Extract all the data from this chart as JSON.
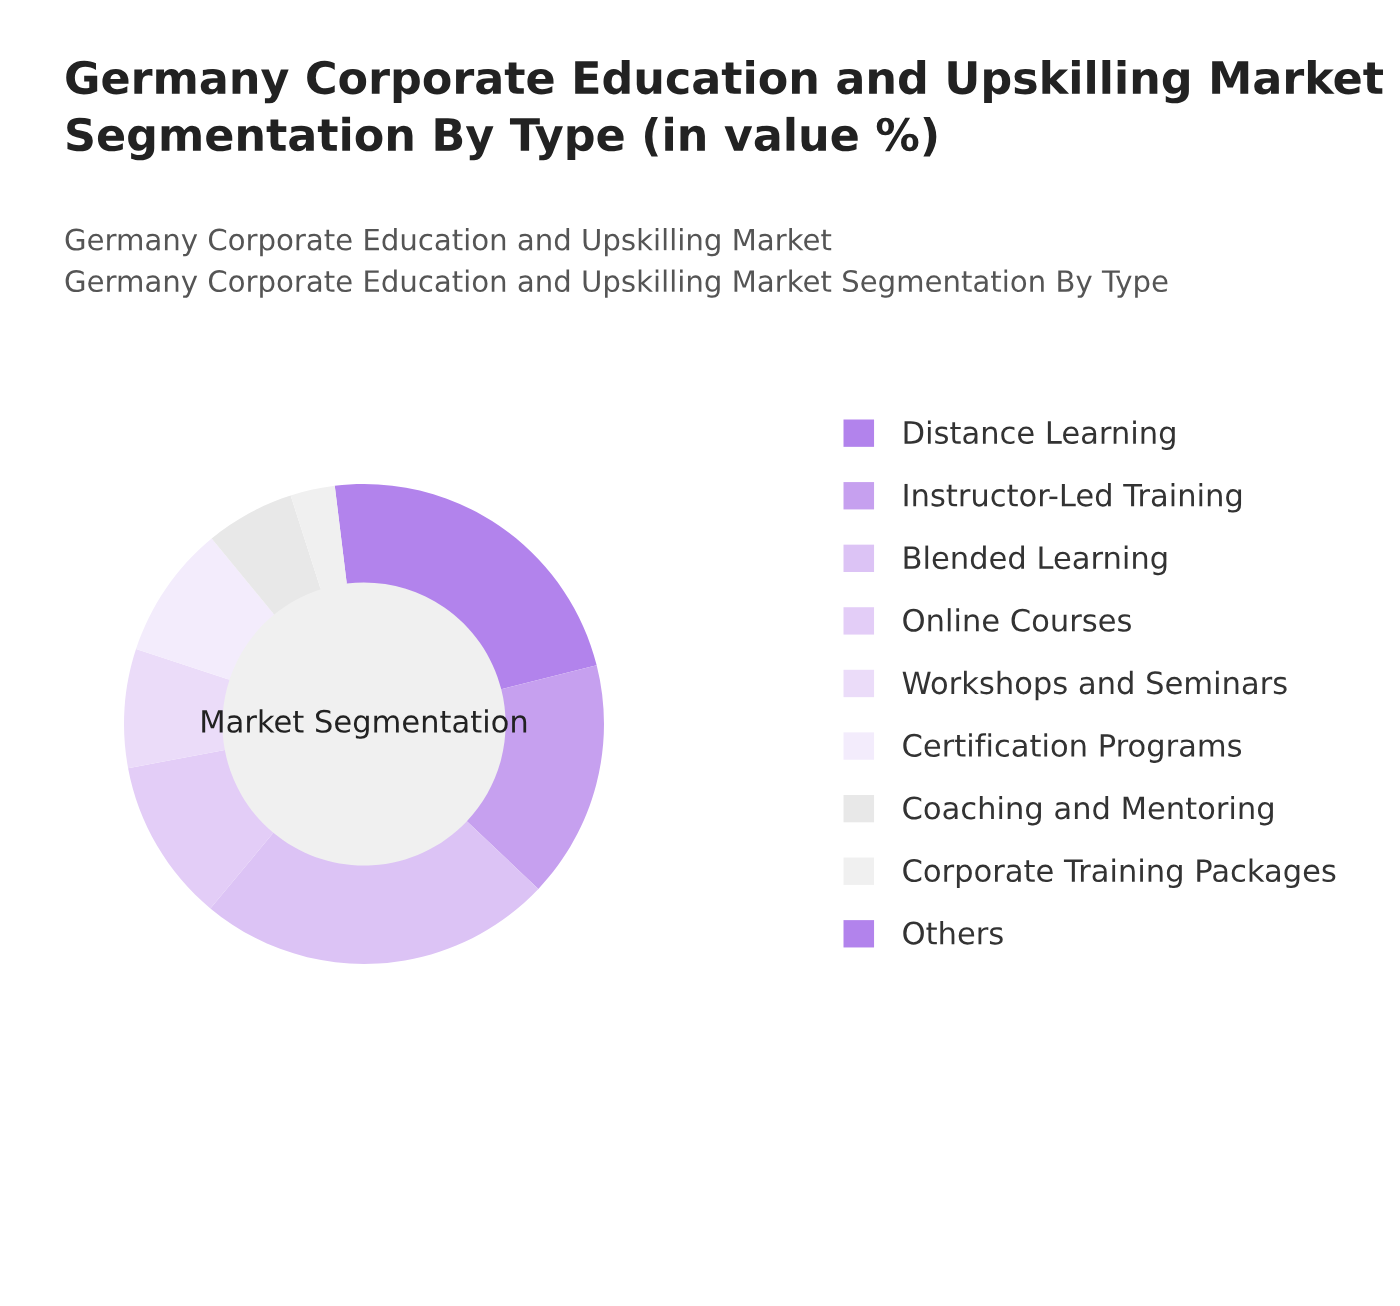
{
  "chart_data": {
    "type": "donut",
    "title": "Germany Corporate Education and Upskilling Market Segmentation By Type (in value %)",
    "subtitle": "Germany Corporate Education and Upskilling Market\nGermany Corporate Education and Upskilling Market Segmentation By Type",
    "categories": [
      "Distance Learning",
      "Instructor-Led Training",
      "Blended Learning",
      "Online Courses",
      "Workshops and Seminars",
      "Certification Programs",
      "Coaching and Mentoring",
      "Corporate Training Packages",
      "Others"
    ],
    "values": [
      23,
      16,
      24,
      11,
      8,
      9,
      6,
      3,
      0
    ],
    "colors": [
      "#b283ec",
      "#c6a0ef",
      "#dcc3f5",
      "#e3cdf7",
      "#ebdcf9",
      "#f3ecfc",
      "#e8e8e8",
      "#f0f0f0",
      "#b283ec"
    ],
    "annotations": [
      "Market Segmentation"
    ],
    "legend": "right"
  }
}
